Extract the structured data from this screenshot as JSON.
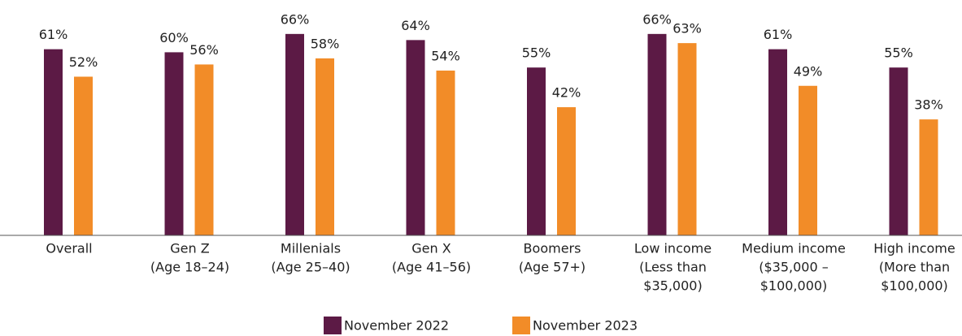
{
  "chart_data": {
    "type": "bar",
    "categories": [
      [
        "Overall"
      ],
      [
        "Gen Z",
        "(Age 18–24)"
      ],
      [
        "Millenials",
        "(Age 25–40)"
      ],
      [
        "Gen X",
        "(Age 41–56)"
      ],
      [
        "Boomers",
        "(Age 57+)"
      ],
      [
        "Low income",
        "(Less than",
        "$35,000)"
      ],
      [
        "Medium income",
        "($35,000 –",
        "$100,000)"
      ],
      [
        "High income",
        "(More than",
        "$100,000)"
      ]
    ],
    "series": [
      {
        "name": "November 2022",
        "color": "#5c1a45",
        "values": [
          61,
          60,
          66,
          64,
          55,
          66,
          61,
          55
        ],
        "value_labels": [
          "61%",
          "60%",
          "66%",
          "64%",
          "55%",
          "66%",
          "61%",
          "55%"
        ]
      },
      {
        "name": "November 2023",
        "color": "#f28c28",
        "values": [
          52,
          56,
          58,
          54,
          42,
          63,
          49,
          38
        ],
        "value_labels": [
          "52%",
          "56%",
          "58%",
          "54%",
          "42%",
          "63%",
          "49%",
          "38%"
        ]
      }
    ],
    "legend": "bottom"
  }
}
